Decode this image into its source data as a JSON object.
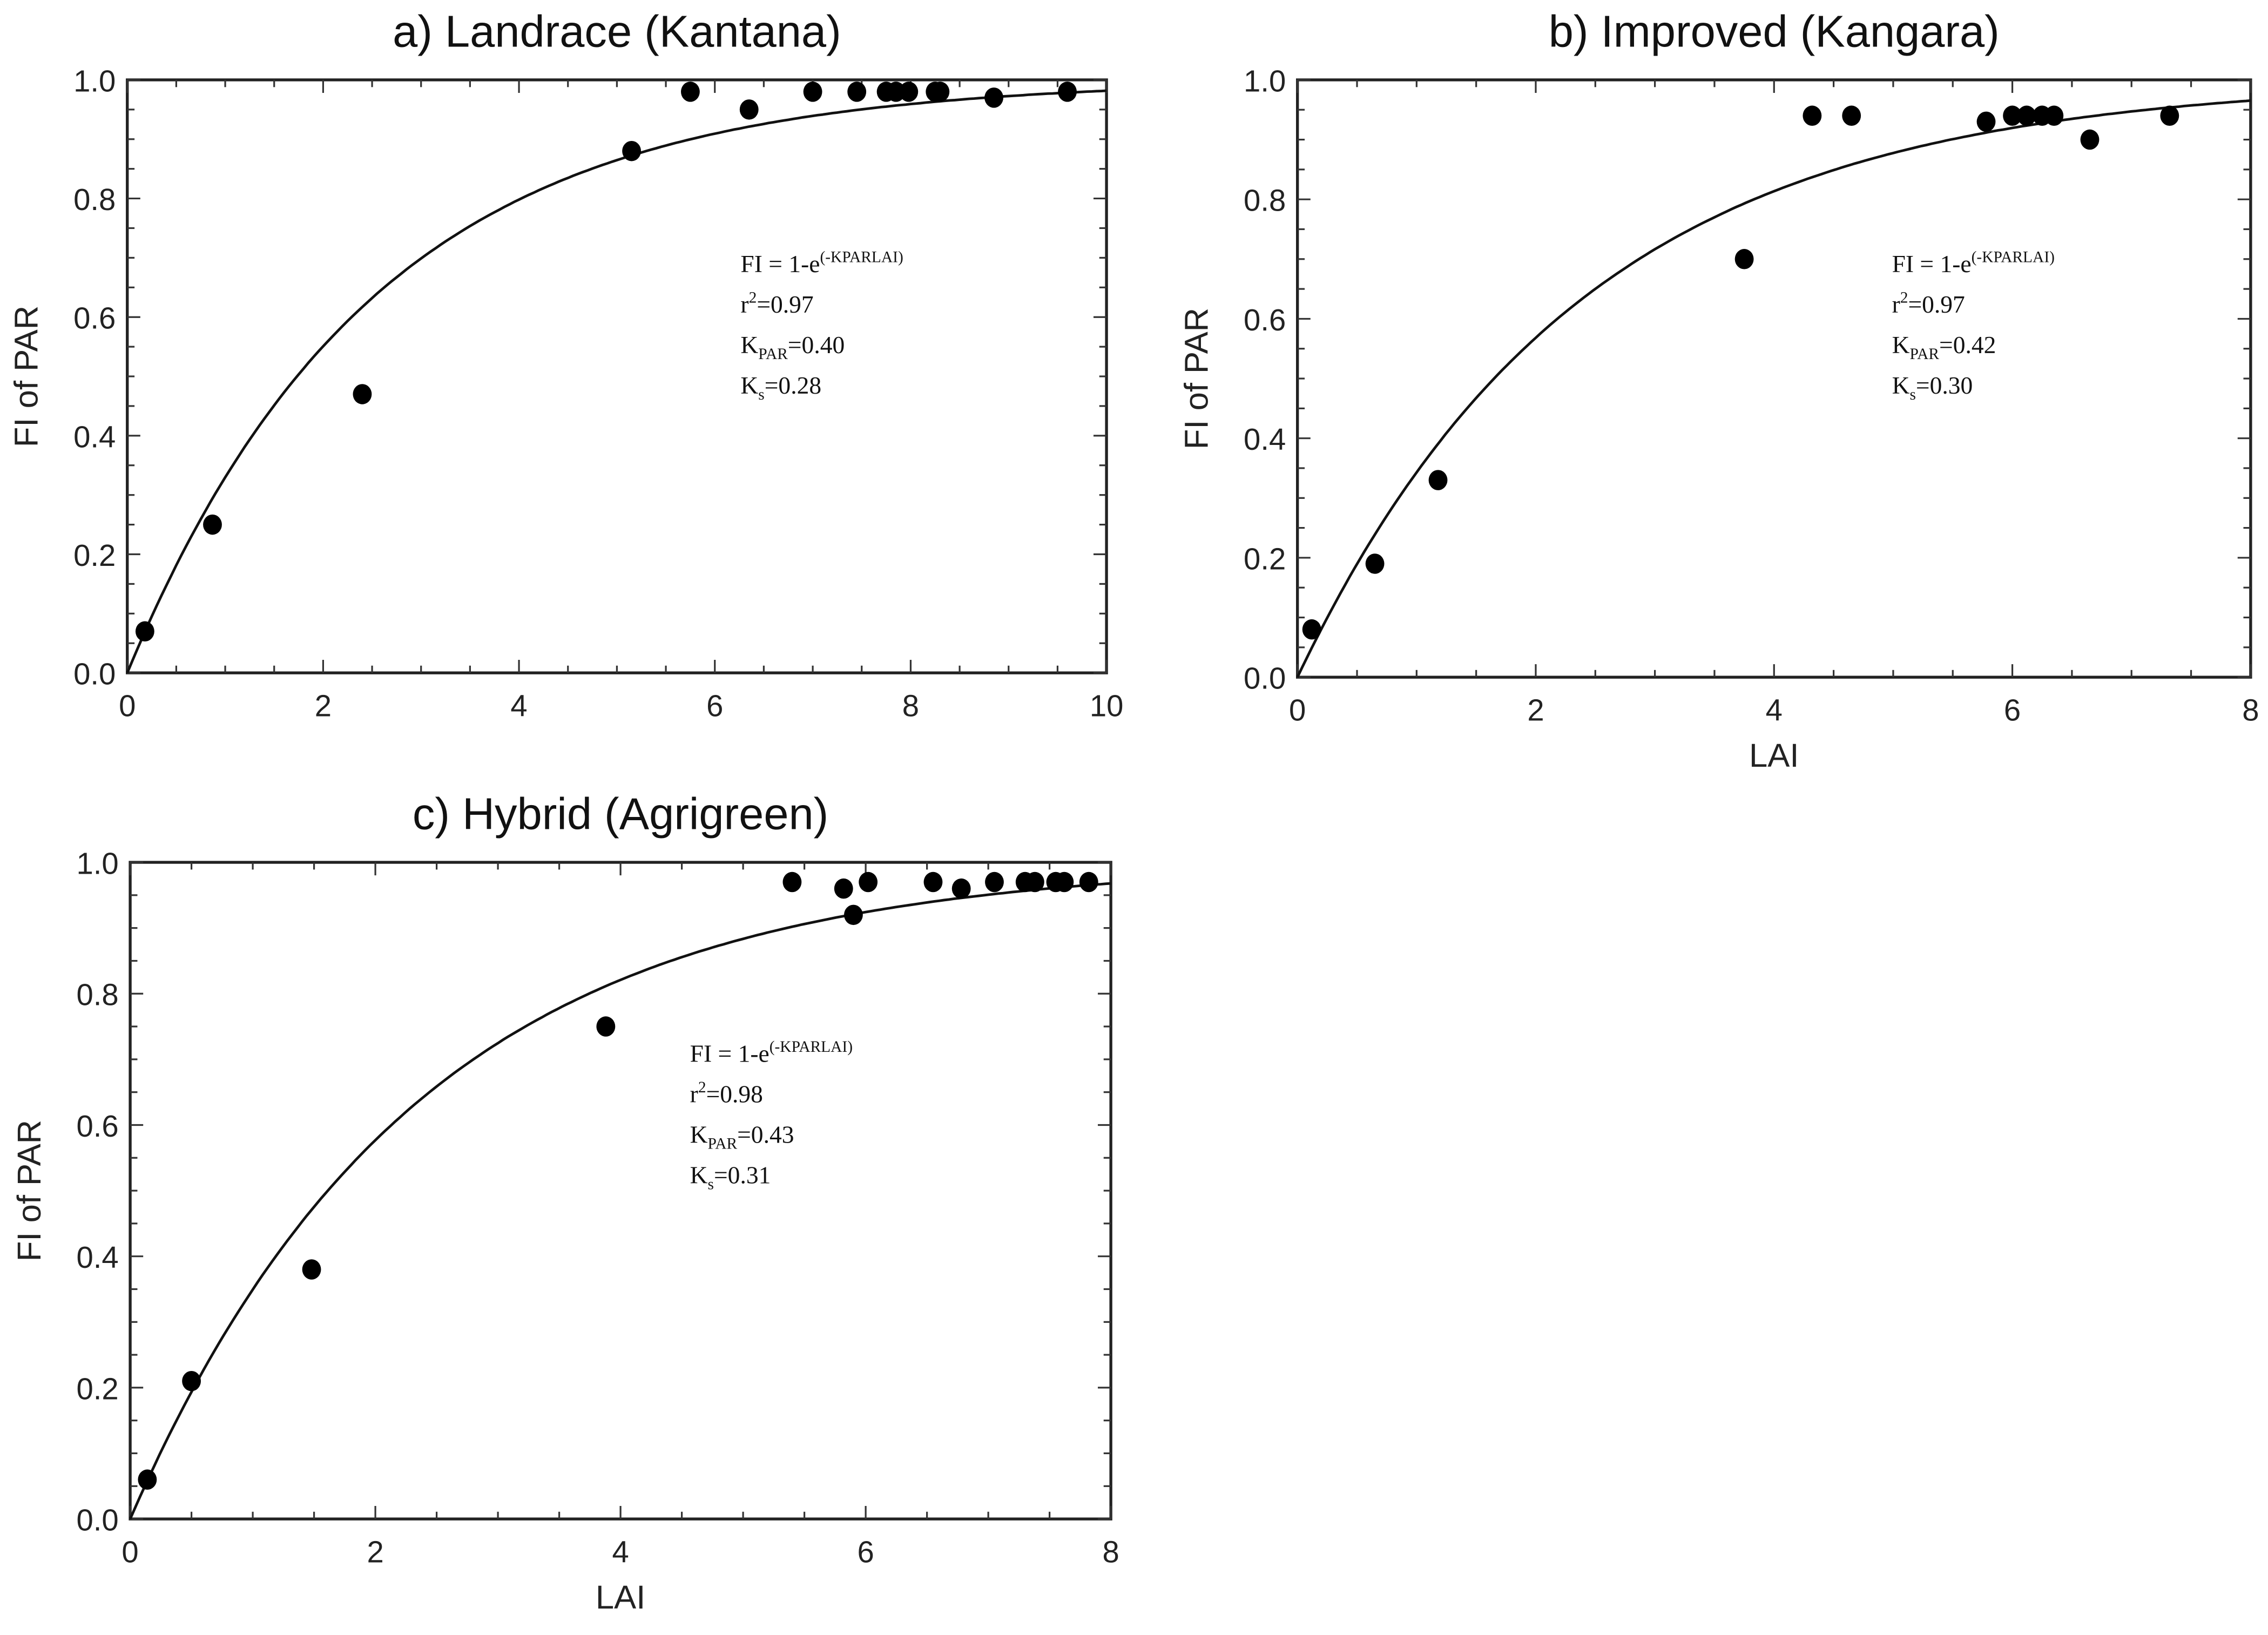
{
  "chart_data": [
    {
      "type": "scatter",
      "title": "a) Landrace (Kantana)",
      "xlabel": "",
      "ylabel": "FI of PAR",
      "xlim": [
        0,
        10
      ],
      "ylim": [
        0,
        1.0
      ],
      "xticks": [
        "0",
        "2",
        "4",
        "6",
        "8",
        "10"
      ],
      "yticks": [
        "0.0",
        "0.2",
        "0.4",
        "0.6",
        "0.8",
        "1.0"
      ],
      "fit": {
        "model": "FI = 1-exp(-K*LAI)",
        "k": 0.4
      },
      "annotation": {
        "formula": "FI = 1-e",
        "formula_sup": "(-KPARLAI)",
        "r2_label": "r",
        "r2_sup": "2",
        "r2_value": "=0.97",
        "kpar_label": "K",
        "kpar_sub": "PAR",
        "kpar_value": "=0.40",
        "ks_label": "K",
        "ks_sub": "s",
        "ks_value": "=0.28"
      },
      "points": [
        [
          0.18,
          0.07
        ],
        [
          0.87,
          0.25
        ],
        [
          2.4,
          0.47
        ],
        [
          5.15,
          0.88
        ],
        [
          5.75,
          0.98
        ],
        [
          6.35,
          0.95
        ],
        [
          7.0,
          0.98
        ],
        [
          7.45,
          0.98
        ],
        [
          7.75,
          0.98
        ],
        [
          7.85,
          0.98
        ],
        [
          7.98,
          0.98
        ],
        [
          8.25,
          0.98
        ],
        [
          8.3,
          0.98
        ],
        [
          8.85,
          0.97
        ],
        [
          9.6,
          0.98
        ]
      ]
    },
    {
      "type": "scatter",
      "title": "b) Improved (Kangara)",
      "xlabel": "LAI",
      "ylabel": "FI of PAR",
      "xlim": [
        0,
        8
      ],
      "ylim": [
        0,
        1.0
      ],
      "xticks": [
        "0",
        "2",
        "4",
        "6",
        "8"
      ],
      "yticks": [
        "0.0",
        "0.2",
        "0.4",
        "0.6",
        "0.8",
        "1.0"
      ],
      "fit": {
        "model": "FI = 1-exp(-K*LAI)",
        "k": 0.42
      },
      "annotation": {
        "formula": "FI = 1-e",
        "formula_sup": "(-KPARLAI)",
        "r2_label": "r",
        "r2_sup": "2",
        "r2_value": "=0.97",
        "kpar_label": "K",
        "kpar_sub": "PAR",
        "kpar_value": "=0.42",
        "ks_label": "K",
        "ks_sub": "s",
        "ks_value": "=0.30"
      },
      "points": [
        [
          0.12,
          0.08
        ],
        [
          0.65,
          0.19
        ],
        [
          1.18,
          0.33
        ],
        [
          3.75,
          0.7
        ],
        [
          4.32,
          0.94
        ],
        [
          4.65,
          0.94
        ],
        [
          5.78,
          0.93
        ],
        [
          6.0,
          0.94
        ],
        [
          6.12,
          0.94
        ],
        [
          6.25,
          0.94
        ],
        [
          6.35,
          0.94
        ],
        [
          6.65,
          0.9
        ],
        [
          7.32,
          0.94
        ]
      ]
    },
    {
      "type": "scatter",
      "title": "c) Hybrid (Agrigreen)",
      "xlabel": "LAI",
      "ylabel": "FI of PAR",
      "xlim": [
        0,
        8
      ],
      "ylim": [
        0,
        1.0
      ],
      "xticks": [
        "0",
        "2",
        "4",
        "6",
        "8"
      ],
      "yticks": [
        "0.0",
        "0.2",
        "0.4",
        "0.6",
        "0.8",
        "1.0"
      ],
      "fit": {
        "model": "FI = 1-exp(-K*LAI)",
        "k": 0.43
      },
      "annotation": {
        "formula": "FI = 1-e",
        "formula_sup": "(-KPARLAI)",
        "r2_label": "r",
        "r2_sup": "2",
        "r2_value": "=0.98",
        "kpar_label": "K",
        "kpar_sub": "PAR",
        "kpar_value": "=0.43",
        "ks_label": "K",
        "ks_sub": "s",
        "ks_value": "=0.31"
      },
      "points": [
        [
          0.14,
          0.06
        ],
        [
          0.5,
          0.21
        ],
        [
          1.48,
          0.38
        ],
        [
          3.88,
          0.75
        ],
        [
          5.4,
          0.97
        ],
        [
          5.82,
          0.96
        ],
        [
          5.9,
          0.92
        ],
        [
          6.02,
          0.97
        ],
        [
          6.55,
          0.97
        ],
        [
          6.78,
          0.96
        ],
        [
          7.05,
          0.97
        ],
        [
          7.3,
          0.97
        ],
        [
          7.38,
          0.97
        ],
        [
          7.55,
          0.97
        ],
        [
          7.62,
          0.97
        ],
        [
          7.82,
          0.97
        ]
      ]
    }
  ]
}
